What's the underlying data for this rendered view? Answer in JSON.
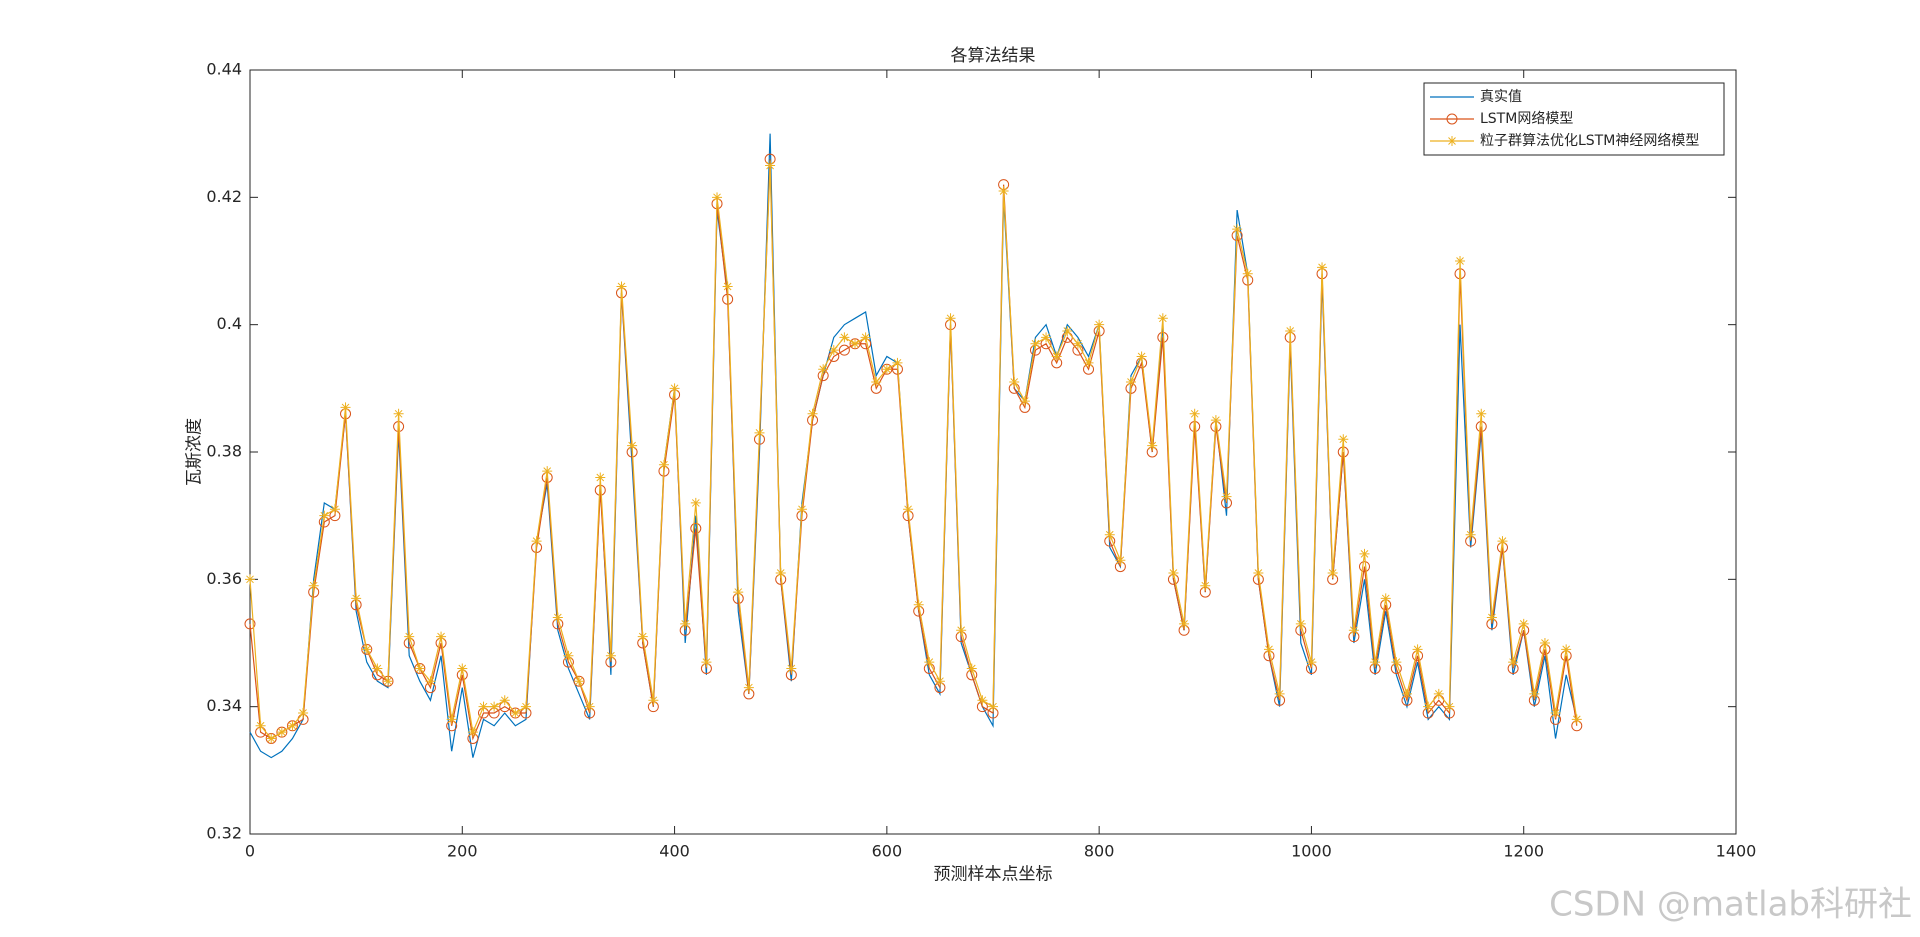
{
  "chart_data": {
    "type": "line",
    "title": "各算法结果",
    "xlabel": "预测样本点坐标",
    "ylabel": "瓦斯浓度",
    "watermark": "CSDN @matlab科研社",
    "legend": "upper right",
    "xlim": [
      0,
      1400
    ],
    "xticks": [
      0,
      200,
      400,
      600,
      800,
      1000,
      1200,
      1400
    ],
    "ylim": [
      0.32,
      0.44
    ],
    "yticks": [
      0.32,
      0.34,
      0.36,
      0.38,
      0.4,
      0.42,
      0.44
    ],
    "x": [
      0,
      10,
      20,
      30,
      40,
      50,
      60,
      70,
      80,
      90,
      100,
      110,
      120,
      130,
      140,
      150,
      160,
      170,
      180,
      190,
      200,
      210,
      220,
      230,
      240,
      250,
      260,
      270,
      280,
      290,
      300,
      310,
      320,
      330,
      340,
      350,
      360,
      370,
      380,
      390,
      400,
      410,
      420,
      430,
      440,
      450,
      460,
      470,
      480,
      490,
      500,
      510,
      520,
      530,
      540,
      550,
      560,
      570,
      580,
      590,
      600,
      610,
      620,
      630,
      640,
      650,
      660,
      670,
      680,
      690,
      700,
      710,
      720,
      730,
      740,
      750,
      760,
      770,
      780,
      790,
      800,
      810,
      820,
      830,
      840,
      850,
      860,
      870,
      880,
      890,
      900,
      910,
      920,
      930,
      940,
      950,
      960,
      970,
      980,
      990,
      1000,
      1010,
      1020,
      1030,
      1040,
      1050,
      1060,
      1070,
      1080,
      1090,
      1100,
      1110,
      1120,
      1130,
      1140,
      1150,
      1160,
      1170,
      1180,
      1190,
      1200,
      1210,
      1220,
      1230,
      1240,
      1250
    ],
    "series": [
      {
        "name": "真实值",
        "color": "#0072bd",
        "marker": "none",
        "values": [
          0.336,
          0.333,
          0.332,
          0.333,
          0.335,
          0.338,
          0.36,
          0.372,
          0.371,
          0.386,
          0.355,
          0.347,
          0.344,
          0.343,
          0.383,
          0.348,
          0.344,
          0.341,
          0.348,
          0.333,
          0.343,
          0.332,
          0.338,
          0.337,
          0.339,
          0.337,
          0.338,
          0.366,
          0.375,
          0.352,
          0.346,
          0.342,
          0.338,
          0.375,
          0.345,
          0.405,
          0.378,
          0.35,
          0.34,
          0.378,
          0.39,
          0.35,
          0.37,
          0.345,
          0.418,
          0.405,
          0.355,
          0.342,
          0.38,
          0.43,
          0.36,
          0.344,
          0.372,
          0.385,
          0.392,
          0.398,
          0.4,
          0.401,
          0.402,
          0.392,
          0.395,
          0.394,
          0.37,
          0.355,
          0.345,
          0.342,
          0.4,
          0.35,
          0.345,
          0.34,
          0.337,
          0.42,
          0.39,
          0.388,
          0.398,
          0.4,
          0.395,
          0.4,
          0.398,
          0.395,
          0.4,
          0.365,
          0.362,
          0.392,
          0.395,
          0.38,
          0.4,
          0.36,
          0.352,
          0.385,
          0.358,
          0.385,
          0.37,
          0.418,
          0.408,
          0.36,
          0.348,
          0.34,
          0.397,
          0.35,
          0.345,
          0.407,
          0.36,
          0.38,
          0.35,
          0.36,
          0.345,
          0.355,
          0.345,
          0.34,
          0.347,
          0.338,
          0.34,
          0.338,
          0.4,
          0.365,
          0.383,
          0.352,
          0.365,
          0.345,
          0.352,
          0.34,
          0.348,
          0.335,
          0.345,
          0.338
        ]
      },
      {
        "name": "LSTM网络模型",
        "color": "#d95319",
        "marker": "circle",
        "values": [
          0.353,
          0.336,
          0.335,
          0.336,
          0.337,
          0.338,
          0.358,
          0.369,
          0.37,
          0.386,
          0.356,
          0.349,
          0.345,
          0.344,
          0.384,
          0.35,
          0.346,
          0.343,
          0.35,
          0.337,
          0.345,
          0.335,
          0.339,
          0.339,
          0.34,
          0.339,
          0.339,
          0.365,
          0.376,
          0.353,
          0.347,
          0.344,
          0.339,
          0.374,
          0.347,
          0.405,
          0.38,
          0.35,
          0.34,
          0.377,
          0.389,
          0.352,
          0.368,
          0.346,
          0.419,
          0.404,
          0.357,
          0.342,
          0.382,
          0.426,
          0.36,
          0.345,
          0.37,
          0.385,
          0.392,
          0.395,
          0.396,
          0.397,
          0.397,
          0.39,
          0.393,
          0.393,
          0.37,
          0.355,
          0.346,
          0.343,
          0.4,
          0.351,
          0.345,
          0.34,
          0.339,
          0.422,
          0.39,
          0.387,
          0.396,
          0.397,
          0.394,
          0.398,
          0.396,
          0.393,
          0.399,
          0.366,
          0.362,
          0.39,
          0.394,
          0.38,
          0.398,
          0.36,
          0.352,
          0.384,
          0.358,
          0.384,
          0.372,
          0.414,
          0.407,
          0.36,
          0.348,
          0.341,
          0.398,
          0.352,
          0.346,
          0.408,
          0.36,
          0.38,
          0.351,
          0.362,
          0.346,
          0.356,
          0.346,
          0.341,
          0.348,
          0.339,
          0.341,
          0.339,
          0.408,
          0.366,
          0.384,
          0.353,
          0.365,
          0.346,
          0.352,
          0.341,
          0.349,
          0.338,
          0.348,
          0.337
        ]
      },
      {
        "name": "粒子群算法优化LSTM神经网络模型",
        "color": "#edb120",
        "marker": "star",
        "values": [
          0.36,
          0.337,
          0.335,
          0.336,
          0.337,
          0.339,
          0.359,
          0.37,
          0.371,
          0.387,
          0.357,
          0.349,
          0.346,
          0.344,
          0.386,
          0.351,
          0.346,
          0.344,
          0.351,
          0.338,
          0.346,
          0.336,
          0.34,
          0.34,
          0.341,
          0.339,
          0.34,
          0.366,
          0.377,
          0.354,
          0.348,
          0.344,
          0.34,
          0.376,
          0.348,
          0.406,
          0.381,
          0.351,
          0.341,
          0.378,
          0.39,
          0.353,
          0.372,
          0.347,
          0.42,
          0.406,
          0.358,
          0.343,
          0.383,
          0.425,
          0.361,
          0.346,
          0.371,
          0.386,
          0.393,
          0.396,
          0.398,
          0.397,
          0.398,
          0.391,
          0.393,
          0.394,
          0.371,
          0.356,
          0.347,
          0.344,
          0.401,
          0.352,
          0.346,
          0.341,
          0.34,
          0.421,
          0.391,
          0.388,
          0.397,
          0.398,
          0.395,
          0.399,
          0.397,
          0.394,
          0.4,
          0.367,
          0.363,
          0.391,
          0.395,
          0.381,
          0.401,
          0.361,
          0.353,
          0.386,
          0.359,
          0.385,
          0.373,
          0.415,
          0.408,
          0.361,
          0.349,
          0.342,
          0.399,
          0.353,
          0.347,
          0.409,
          0.361,
          0.382,
          0.352,
          0.364,
          0.347,
          0.357,
          0.347,
          0.342,
          0.349,
          0.34,
          0.342,
          0.34,
          0.41,
          0.367,
          0.386,
          0.354,
          0.366,
          0.347,
          0.353,
          0.342,
          0.35,
          0.339,
          0.349,
          0.338
        ]
      }
    ]
  }
}
